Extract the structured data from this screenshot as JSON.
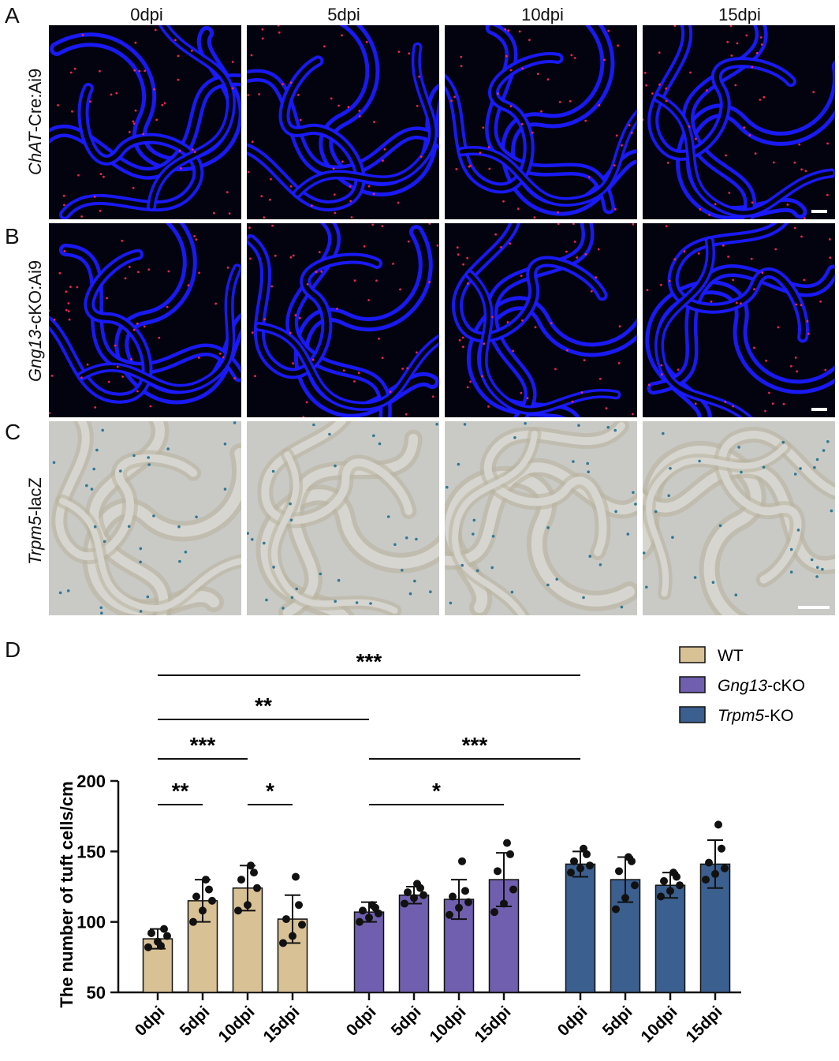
{
  "panels": {
    "A": "A",
    "B": "B",
    "C": "C",
    "D": "D"
  },
  "columns": [
    "0dpi",
    "5dpi",
    "10dpi",
    "15dpi"
  ],
  "rows": {
    "A": {
      "gene": "ChAT",
      "suffix": "-Cre:Ai9"
    },
    "B": {
      "gene": "Gng13",
      "suffix": "-cKO:Ai9"
    },
    "C": {
      "gene": "Trpm5",
      "suffix": "-lacZ"
    }
  },
  "colors": {
    "dapi": "#1a1aff",
    "tdtomato": "#ff2a55",
    "xgal": "#1f6f8f",
    "wt": "#d9c196",
    "gng13": "#6f5fae",
    "trpm5": "#3b5f8e"
  },
  "chart_data": {
    "type": "bar",
    "ylabel": "The number of tuft cells/cm",
    "ylim": [
      50,
      200
    ],
    "yticks": [
      50,
      100,
      150,
      200
    ],
    "categories": [
      "0dpi",
      "5dpi",
      "10dpi",
      "15dpi"
    ],
    "series": [
      {
        "name": "WT",
        "gene": "",
        "suffix": "WT",
        "color": "#d9c196",
        "means": [
          88,
          115,
          124,
          102
        ],
        "sd": [
          7,
          15,
          16,
          17
        ],
        "points": [
          [
            82,
            86,
            90,
            92,
            95,
            83
          ],
          [
            100,
            108,
            115,
            118,
            123,
            130
          ],
          [
            108,
            112,
            124,
            130,
            135,
            140
          ],
          [
            85,
            90,
            98,
            102,
            112,
            132
          ]
        ]
      },
      {
        "name": "Gng13-cKO",
        "gene": "Gng13",
        "suffix": "-cKO",
        "color": "#6f5fae",
        "means": [
          107,
          119,
          116,
          130
        ],
        "sd": [
          7,
          6,
          14,
          19
        ],
        "points": [
          [
            100,
            103,
            106,
            108,
            110,
            112
          ],
          [
            113,
            117,
            119,
            121,
            124,
            127
          ],
          [
            105,
            110,
            114,
            118,
            122,
            143
          ],
          [
            107,
            113,
            123,
            136,
            148,
            156
          ]
        ]
      },
      {
        "name": "Trpm5-KO",
        "gene": "Trpm5",
        "suffix": "-KO",
        "color": "#3b5f8e",
        "means": [
          141,
          130,
          126,
          141
        ],
        "sd": [
          9,
          16,
          9,
          17
        ],
        "points": [
          [
            135,
            138,
            140,
            143,
            148,
            152
          ],
          [
            109,
            117,
            126,
            136,
            143,
            146
          ],
          [
            118,
            122,
            126,
            129,
            132,
            135
          ],
          [
            130,
            134,
            138,
            142,
            152,
            169
          ]
        ]
      }
    ],
    "significance": [
      {
        "label": "***",
        "from": [
          0,
          0
        ],
        "to": [
          2,
          0
        ],
        "level": 4
      },
      {
        "label": "**",
        "from": [
          0,
          0
        ],
        "to": [
          1,
          0
        ],
        "level": 3
      },
      {
        "label": "***",
        "from": [
          0,
          0
        ],
        "to": [
          0,
          2
        ],
        "level": 2
      },
      {
        "label": "**",
        "from": [
          0,
          0
        ],
        "to": [
          0,
          1
        ],
        "level": 1
      },
      {
        "label": "*",
        "from": [
          0,
          2
        ],
        "to": [
          0,
          3
        ],
        "level": 1
      },
      {
        "label": "***",
        "from": [
          1,
          0
        ],
        "to": [
          2,
          0
        ],
        "level": 2
      },
      {
        "label": "*",
        "from": [
          1,
          0
        ],
        "to": [
          1,
          3
        ],
        "level": 1
      }
    ]
  }
}
